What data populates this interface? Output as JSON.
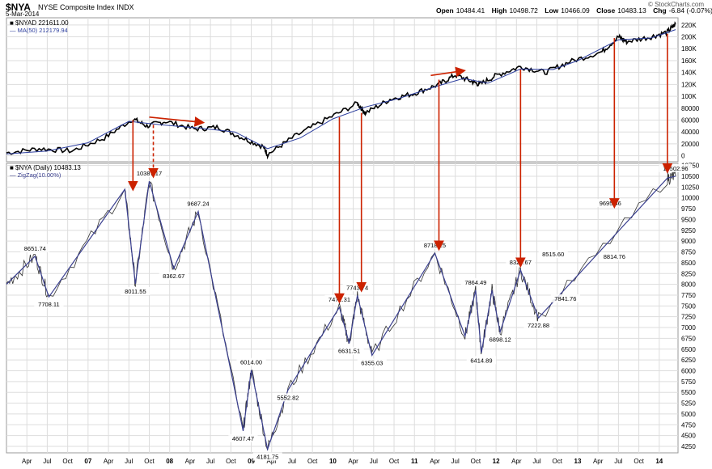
{
  "header": {
    "symbol": "$NYA",
    "name": "NYSE Composite Index",
    "exchange": "INDX",
    "date": "5-Mar-2014",
    "open_label": "Open",
    "open": "10484.41",
    "high_label": "High",
    "high": "10498.72",
    "low_label": "Low",
    "low": "10466.09",
    "close_label": "Close",
    "close": "10483.13",
    "chg_label": "Chg",
    "chg": "-6.84 (-0.07%)",
    "brand": "© StockCharts.com"
  },
  "colors": {
    "price": "#000000",
    "ma": "#2c3e9e",
    "zigzag": "#3a3f8f",
    "arrow": "#cc2200",
    "grid": "#dddddd"
  },
  "chart_data": [
    {
      "type": "line",
      "panel": "top",
      "legend": [
        "$NYAD 221611.00",
        "MA(50) 212179.94"
      ],
      "y_ticks": [
        "220K",
        "200K",
        "180K",
        "160K",
        "140K",
        "120K",
        "100K",
        "80000",
        "60000",
        "40000",
        "20000",
        "0"
      ],
      "ylim": [
        -10000,
        232000
      ],
      "price_points": [
        [
          2006.0,
          5000
        ],
        [
          2006.4,
          12000
        ],
        [
          2006.8,
          8000
        ],
        [
          2007.2,
          30000
        ],
        [
          2007.55,
          62000
        ],
        [
          2007.72,
          50000
        ],
        [
          2007.95,
          58000
        ],
        [
          2008.3,
          45000
        ],
        [
          2008.6,
          48000
        ],
        [
          2008.9,
          30000
        ],
        [
          2009.15,
          15000
        ],
        [
          2009.2,
          2000
        ],
        [
          2009.5,
          30000
        ],
        [
          2009.9,
          60000
        ],
        [
          2010.3,
          88000
        ],
        [
          2010.4,
          72000
        ],
        [
          2010.7,
          95000
        ],
        [
          2011.0,
          105000
        ],
        [
          2011.3,
          120000
        ],
        [
          2011.5,
          136000
        ],
        [
          2011.7,
          125000
        ],
        [
          2011.8,
          120000
        ],
        [
          2012.0,
          135000
        ],
        [
          2012.3,
          150000
        ],
        [
          2012.6,
          140000
        ],
        [
          2012.9,
          158000
        ],
        [
          2013.3,
          175000
        ],
        [
          2013.5,
          200000
        ],
        [
          2013.6,
          192000
        ],
        [
          2013.9,
          200000
        ],
        [
          2014.1,
          208000
        ],
        [
          2014.2,
          221611
        ]
      ],
      "ma_points": [
        [
          2006.0,
          3000
        ],
        [
          2006.5,
          8000
        ],
        [
          2007.0,
          22000
        ],
        [
          2007.5,
          58000
        ],
        [
          2007.9,
          52000
        ],
        [
          2008.4,
          46000
        ],
        [
          2008.8,
          40000
        ],
        [
          2009.2,
          12000
        ],
        [
          2009.6,
          30000
        ],
        [
          2010.0,
          62000
        ],
        [
          2010.4,
          82000
        ],
        [
          2010.8,
          96000
        ],
        [
          2011.3,
          118000
        ],
        [
          2011.6,
          130000
        ],
        [
          2011.9,
          122000
        ],
        [
          2012.3,
          146000
        ],
        [
          2012.7,
          145000
        ],
        [
          2013.0,
          160000
        ],
        [
          2013.5,
          195000
        ],
        [
          2013.9,
          198000
        ],
        [
          2014.2,
          212179
        ]
      ]
    },
    {
      "type": "line",
      "panel": "bottom",
      "legend": [
        "$NYA (Daily) 10483.13",
        "ZigZag(10.00%)"
      ],
      "y_ticks": [
        "10750",
        "10500",
        "10250",
        "10000",
        "9750",
        "9500",
        "9250",
        "9000",
        "8750",
        "8500",
        "8250",
        "8000",
        "7750",
        "7500",
        "7250",
        "7000",
        "6750",
        "6500",
        "6250",
        "6000",
        "5750",
        "5500",
        "5250",
        "5000",
        "4750",
        "4500",
        "4250"
      ],
      "ylim": [
        4100,
        10800
      ],
      "zigzag_points": [
        [
          2006.0,
          8000
        ],
        [
          2006.35,
          8651.74
        ],
        [
          2006.52,
          7708.11
        ],
        [
          2007.45,
          10200
        ],
        [
          2007.58,
          8011.55
        ],
        [
          2007.75,
          10387.17
        ],
        [
          2008.05,
          8362.67
        ],
        [
          2008.35,
          9687.24
        ],
        [
          2008.9,
          4607.47
        ],
        [
          2009.0,
          6014.0
        ],
        [
          2009.2,
          4181.75
        ],
        [
          2009.45,
          5552.82
        ],
        [
          2010.08,
          7471.31
        ],
        [
          2010.2,
          6631.51
        ],
        [
          2010.3,
          7743.74
        ],
        [
          2010.48,
          6355.03
        ],
        [
          2011.25,
          8718.25
        ],
        [
          2011.62,
          6800.0
        ],
        [
          2011.75,
          7864.49
        ],
        [
          2011.82,
          6414.89
        ],
        [
          2011.95,
          7864.0
        ],
        [
          2012.05,
          6898.12
        ],
        [
          2012.3,
          8327.67
        ],
        [
          2012.52,
          7222.88
        ],
        [
          2014.1,
          10460.0
        ],
        [
          2014.2,
          10502.96
        ]
      ],
      "labels": [
        {
          "x": 2006.35,
          "y": 8651.74,
          "text": "8651.74",
          "pos": "above"
        },
        {
          "x": 2006.52,
          "y": 7708.11,
          "text": "7708.11",
          "pos": "below"
        },
        {
          "x": 2007.58,
          "y": 8011.55,
          "text": "8011.55",
          "pos": "below"
        },
        {
          "x": 2007.75,
          "y": 10387.17,
          "text": "10387.17",
          "pos": "above"
        },
        {
          "x": 2008.05,
          "y": 8362.67,
          "text": "8362.67",
          "pos": "below"
        },
        {
          "x": 2008.35,
          "y": 9687.24,
          "text": "9687.24",
          "pos": "above"
        },
        {
          "x": 2008.9,
          "y": 4607.47,
          "text": "4607.47",
          "pos": "below"
        },
        {
          "x": 2009.0,
          "y": 6014.0,
          "text": "6014.00",
          "pos": "above"
        },
        {
          "x": 2009.2,
          "y": 4181.75,
          "text": "4181.75",
          "pos": "below"
        },
        {
          "x": 2009.45,
          "y": 5552.82,
          "text": "5552.82",
          "pos": "below"
        },
        {
          "x": 2010.08,
          "y": 7471.31,
          "text": "7471.31",
          "pos": "above"
        },
        {
          "x": 2010.2,
          "y": 6631.51,
          "text": "6631.51",
          "pos": "below"
        },
        {
          "x": 2010.3,
          "y": 7743.74,
          "text": "7743.74",
          "pos": "above"
        },
        {
          "x": 2010.48,
          "y": 6355.03,
          "text": "6355.03",
          "pos": "below"
        },
        {
          "x": 2011.25,
          "y": 8718.25,
          "text": "8718.25",
          "pos": "above"
        },
        {
          "x": 2011.75,
          "y": 7864.49,
          "text": "7864.49",
          "pos": "above"
        },
        {
          "x": 2011.82,
          "y": 6414.89,
          "text": "6414.89",
          "pos": "below"
        },
        {
          "x": 2012.05,
          "y": 6898.12,
          "text": "6898.12",
          "pos": "below"
        },
        {
          "x": 2012.3,
          "y": 8327.67,
          "text": "8327.67",
          "pos": "above"
        },
        {
          "x": 2012.52,
          "y": 7222.88,
          "text": "7222.88",
          "pos": "below"
        },
        {
          "x": 2012.7,
          "y": 8515.6,
          "text": "8515.60",
          "pos": "above"
        },
        {
          "x": 2012.85,
          "y": 7841.76,
          "text": "7841.76",
          "pos": "below"
        },
        {
          "x": 2013.4,
          "y": 9695.46,
          "text": "9695.46",
          "pos": "above"
        },
        {
          "x": 2013.45,
          "y": 8814.76,
          "text": "8814.76",
          "pos": "below"
        },
        {
          "x": 2014.2,
          "y": 10502.96,
          "text": "10502.96",
          "pos": "above"
        }
      ]
    }
  ],
  "x_axis": {
    "ticks": [
      {
        "x": 2006.25,
        "label": "Apr"
      },
      {
        "x": 2006.5,
        "label": "Jul"
      },
      {
        "x": 2006.75,
        "label": "Oct"
      },
      {
        "x": 2007.0,
        "label": "07"
      },
      {
        "x": 2007.25,
        "label": "Apr"
      },
      {
        "x": 2007.5,
        "label": "Jul"
      },
      {
        "x": 2007.75,
        "label": "Oct"
      },
      {
        "x": 2008.0,
        "label": "08"
      },
      {
        "x": 2008.25,
        "label": "Apr"
      },
      {
        "x": 2008.5,
        "label": "Jul"
      },
      {
        "x": 2008.75,
        "label": "Oct"
      },
      {
        "x": 2009.0,
        "label": "09"
      },
      {
        "x": 2009.25,
        "label": "Apr"
      },
      {
        "x": 2009.5,
        "label": "Jul"
      },
      {
        "x": 2009.75,
        "label": "Oct"
      },
      {
        "x": 2010.0,
        "label": "10"
      },
      {
        "x": 2010.25,
        "label": "Apr"
      },
      {
        "x": 2010.5,
        "label": "Jul"
      },
      {
        "x": 2010.75,
        "label": "Oct"
      },
      {
        "x": 2011.0,
        "label": "11"
      },
      {
        "x": 2011.25,
        "label": "Apr"
      },
      {
        "x": 2011.5,
        "label": "Jul"
      },
      {
        "x": 2011.75,
        "label": "Oct"
      },
      {
        "x": 2012.0,
        "label": "12"
      },
      {
        "x": 2012.25,
        "label": "Apr"
      },
      {
        "x": 2012.5,
        "label": "Jul"
      },
      {
        "x": 2012.75,
        "label": "Oct"
      },
      {
        "x": 2013.0,
        "label": "13"
      },
      {
        "x": 2013.25,
        "label": "Apr"
      },
      {
        "x": 2013.5,
        "label": "Jul"
      },
      {
        "x": 2013.75,
        "label": "Oct"
      },
      {
        "x": 2014.0,
        "label": "14"
      }
    ],
    "xlim": [
      2006.0,
      2014.23
    ]
  },
  "annotations": {
    "arrows": [
      {
        "x": 2007.55,
        "y1": 60000,
        "y2": 10100,
        "style": "solid"
      },
      {
        "x": 2007.8,
        "y1": 52000,
        "y2": 10400,
        "style": "dashed"
      },
      {
        "x": 2010.08,
        "y1": 65000,
        "y2": 7500,
        "style": "solid"
      },
      {
        "x": 2010.35,
        "y1": 72000,
        "y2": 7760,
        "style": "solid"
      },
      {
        "x": 2011.3,
        "y1": 128000,
        "y2": 8720,
        "style": "solid"
      },
      {
        "x": 2012.3,
        "y1": 145000,
        "y2": 8330,
        "style": "solid"
      },
      {
        "x": 2013.45,
        "y1": 198000,
        "y2": 9700,
        "style": "solid"
      },
      {
        "x": 2014.1,
        "y1": 205000,
        "y2": 10510,
        "style": "solid"
      }
    ],
    "slope_arrows": [
      {
        "x1": 2007.75,
        "y1": 65000,
        "x2": 2008.4,
        "y2": 56000
      },
      {
        "x1": 2011.2,
        "y1": 135000,
        "x2": 2011.6,
        "y2": 143000
      }
    ]
  }
}
